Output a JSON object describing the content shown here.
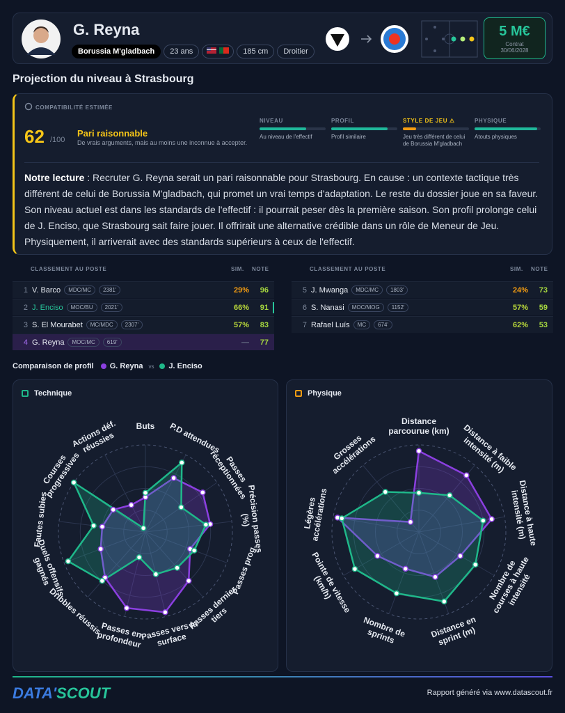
{
  "header": {
    "name": "G. Reyna",
    "club": "Borussia M'gladbach",
    "age": "23 ans",
    "height": "185 cm",
    "foot": "Droitier",
    "value": "5 M€",
    "contract_label": "Contrat",
    "contract_date": "30/06/2028"
  },
  "projection": {
    "title": "Projection du niveau à Strasbourg",
    "label": "COMPATIBILITÉ ESTIMÉE",
    "score": 62,
    "score_max": "/100",
    "verdict": "Pari raisonnable",
    "verdict_text": "De vrais arguments, mais au moins une inconnue à accepter.",
    "criteria": [
      {
        "name": "NIVEAU",
        "value": 70,
        "color": "#1fb89a",
        "name_color": "#7c879a",
        "text": "Au niveau de l'effectif"
      },
      {
        "name": "PROFIL",
        "value": 85,
        "color": "#1fb89a",
        "name_color": "#7c879a",
        "text": "Profil similaire"
      },
      {
        "name": "STYLE DE JEU ⚠",
        "value": 20,
        "color": "#f39c12",
        "name_color": "#f5c518",
        "text": "Jeu très différent de celui de Borussia M'gladbach"
      },
      {
        "name": "PHYSIQUE",
        "value": 95,
        "color": "#1fb89a",
        "name_color": "#7c879a",
        "text": "Atouts physiques"
      }
    ],
    "reading_lead": "Notre lecture",
    "reading_text": ": Recruter G. Reyna serait un pari raisonnable pour Strasbourg. En cause : un contexte tactique très différent de celui de Borussia M'gladbach, qui promet un vrai temps d'adaptation. Le reste du dossier joue en sa faveur. Son niveau actuel est dans les standards de l'effectif : il pourrait peser dès la première saison. Son profil prolonge celui de J. Enciso, que Strasbourg sait faire jouer. Il offrirait une alternative crédible dans un rôle de Meneur de Jeu. Physiquement, il arriverait avec des standards supérieurs à ceux de l'effectif."
  },
  "ranking": [
    {
      "header": "CLASSEMENT AU POSTE",
      "sim_header": "SIM.",
      "note_header": "NOTE",
      "rows": [
        {
          "rank": "1",
          "name": "V. Barco",
          "pos": "MDC/MC",
          "minutes": "2381'",
          "sim": "29%",
          "sim_color": "#f39c12",
          "note": 96
        },
        {
          "rank": "2",
          "name": "J. Enciso",
          "pos": "MOC/BU",
          "minutes": "2021'",
          "sim": "66%",
          "sim_color": "#b5d33a",
          "note": 91,
          "name_color": "#27c59a"
        },
        {
          "rank": "3",
          "name": "S. El Mourabet",
          "pos": "MC/MDC",
          "minutes": "2307'",
          "sim": "57%",
          "sim_color": "#b5d33a",
          "note": 83
        },
        {
          "rank": "4",
          "name": "G. Reyna",
          "pos": "MOC/MC",
          "minutes": "619'",
          "sim": "—",
          "sim_color": "#6b7488",
          "note": 77,
          "highlight": true
        }
      ]
    },
    {
      "header": "CLASSEMENT AU POSTE",
      "sim_header": "SIM.",
      "note_header": "NOTE",
      "rows": [
        {
          "rank": "5",
          "name": "J. Mwanga",
          "pos": "MDC/MC",
          "minutes": "1803'",
          "sim": "24%",
          "sim_color": "#f39c12",
          "note": 73
        },
        {
          "rank": "6",
          "name": "S. Nanasi",
          "pos": "MOC/MOG",
          "minutes": "1152'",
          "sim": "57%",
          "sim_color": "#b5d33a",
          "note": 59
        },
        {
          "rank": "7",
          "name": "Rafael Luís",
          "pos": "MC",
          "minutes": "674'",
          "sim": "62%",
          "sim_color": "#b5d33a",
          "note": 53
        }
      ]
    }
  ],
  "comparison": {
    "title": "Comparaison de profil",
    "vs": "vs",
    "charts": [
      {
        "type": "radar",
        "title": "Technique",
        "rlim": [
          0,
          100
        ],
        "axes": [
          "Buts",
          "P.D attendues",
          "Passes réceptionnées",
          "Précision passes (%)",
          "Passes prog.",
          "Passes dernier tiers",
          "Passes vers la surface",
          "Passes en profondeur",
          "Dribbles réussis",
          "Duels offensifs gagnés",
          "Fautes subies",
          "Courses progressives",
          "Actions déf. réussies"
        ],
        "series": [
          {
            "name": "G. Reyna",
            "color": "#8b3fe0",
            "values": [
              40,
              70,
              80,
              75,
              55,
              75,
              95,
              90,
              70,
              55,
              50,
              45,
              35
            ]
          },
          {
            "name": "J. Enciso",
            "color": "#1fb88a",
            "values": [
              45,
              90,
              50,
              70,
              60,
              55,
              50,
              30,
              75,
              95,
              60,
              100,
              5
            ]
          }
        ]
      },
      {
        "type": "radar",
        "title": "Physique",
        "rlim": [
          0,
          100
        ],
        "axes": [
          "Distance parcourue (km)",
          "Distance à faible intensité (m)",
          "Distance à haute intensité (m)",
          "Nombre de courses à haute intensité",
          "Distance en sprint (m)",
          "Nombre de sprints",
          "Pointe de vitesse (km/h)",
          "Légères accélérations",
          "Grosses accélérations"
        ],
        "series": [
          {
            "name": "G. Reyna",
            "color": "#8b3fe0",
            "values": [
              93,
              85,
              85,
              55,
              55,
              45,
              55,
              95,
              15
            ]
          },
          {
            "name": "J. Enciso",
            "color": "#1fb88a",
            "values": [
              45,
              55,
              75,
              75,
              85,
              75,
              85,
              90,
              60
            ]
          }
        ]
      }
    ]
  },
  "footer": {
    "logo_a": "DATA'",
    "logo_b": "SCOUT",
    "text": "Rapport généré via www.datascout.fr"
  }
}
